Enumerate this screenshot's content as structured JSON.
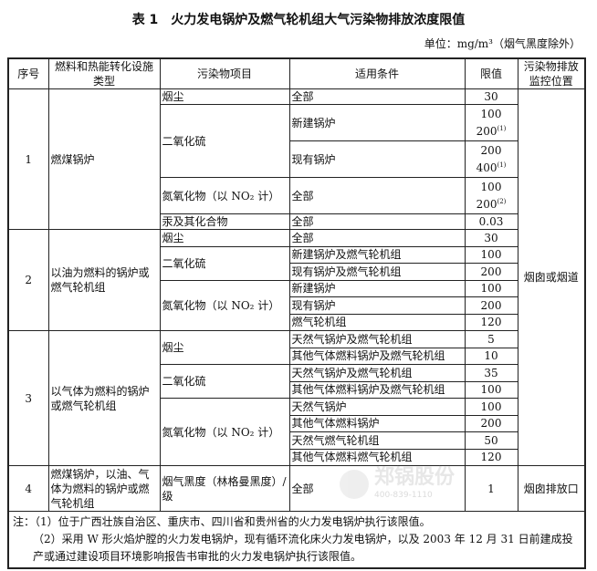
{
  "title": "表 1　火力发电锅炉及燃气轮机组大气污染物排放浓度限值",
  "unit": "单位：mg/m³（烟气黑度除外）",
  "headers": [
    "序号",
    "燃料和热能转化设施类型",
    "污染物项目",
    "适用条件",
    "限值",
    "污染物排放监控位置"
  ],
  "groups": [
    {
      "no": "1",
      "fuel": "燃煤锅炉",
      "pollutants": [
        {
          "name": "烟尘",
          "conds": [
            {
              "c": "全部",
              "l": [
                {
                  "v": "30"
                }
              ]
            }
          ]
        },
        {
          "name": "二氧化硫",
          "conds": [
            {
              "c": "新建锅炉",
              "l": [
                {
                  "v": "100"
                },
                {
                  "v": "200",
                  "n": "(1)"
                }
              ]
            },
            {
              "c": "现有锅炉",
              "l": [
                {
                  "v": "200"
                },
                {
                  "v": "400",
                  "n": "(1)"
                }
              ]
            }
          ]
        },
        {
          "name": "氮氧化物（以 NO₂ 计）",
          "conds": [
            {
              "c": "全部",
              "l": [
                {
                  "v": "100"
                },
                {
                  "v": "200",
                  "n": "(2)"
                }
              ]
            }
          ]
        },
        {
          "name": "汞及其化合物",
          "conds": [
            {
              "c": "全部",
              "l": [
                {
                  "v": "0.03"
                }
              ]
            }
          ]
        }
      ]
    },
    {
      "no": "2",
      "fuel": "以油为燃料的锅炉或燃气轮机组",
      "pollutants": [
        {
          "name": "烟尘",
          "conds": [
            {
              "c": "全部",
              "l": [
                {
                  "v": "30"
                }
              ]
            }
          ]
        },
        {
          "name": "二氧化硫",
          "conds": [
            {
              "c": "新建锅炉及燃气轮机组",
              "l": [
                {
                  "v": "100"
                }
              ]
            },
            {
              "c": "现有锅炉及燃气轮机组",
              "l": [
                {
                  "v": "200"
                }
              ]
            }
          ]
        },
        {
          "name": "氮氧化物（以 NO₂ 计）",
          "conds": [
            {
              "c": "新建锅炉",
              "l": [
                {
                  "v": "100"
                }
              ]
            },
            {
              "c": "现有锅炉",
              "l": [
                {
                  "v": "200"
                }
              ]
            },
            {
              "c": "燃气轮机组",
              "l": [
                {
                  "v": "120"
                }
              ]
            }
          ]
        }
      ]
    },
    {
      "no": "3",
      "fuel": "以气体为燃料的锅炉或燃气轮机组",
      "pollutants": [
        {
          "name": "烟尘",
          "conds": [
            {
              "c": "天然气锅炉及燃气轮机组",
              "l": [
                {
                  "v": "5"
                }
              ]
            },
            {
              "c": "其他气体燃料锅炉及燃气轮机组",
              "l": [
                {
                  "v": "10"
                }
              ]
            }
          ]
        },
        {
          "name": "二氧化硫",
          "conds": [
            {
              "c": "天然气锅炉及燃气轮机组",
              "l": [
                {
                  "v": "35"
                }
              ]
            },
            {
              "c": "其他气体燃料锅炉及燃气轮机组",
              "l": [
                {
                  "v": "100"
                }
              ]
            }
          ]
        },
        {
          "name": "氮氧化物（以 NO₂ 计）",
          "conds": [
            {
              "c": "天然气锅炉",
              "l": [
                {
                  "v": "100"
                }
              ]
            },
            {
              "c": "其他气体燃料锅炉",
              "l": [
                {
                  "v": "200"
                }
              ]
            },
            {
              "c": "天然气燃气轮机组",
              "l": [
                {
                  "v": "50"
                }
              ]
            },
            {
              "c": "其他气体燃料燃气轮机组",
              "l": [
                {
                  "v": "120"
                }
              ]
            }
          ]
        }
      ]
    },
    {
      "no": "4",
      "fuel": "燃煤锅炉，以油、气体为燃料的锅炉或燃气轮机组",
      "pollutants": [
        {
          "name": "烟气黑度（林格曼黑度）/级",
          "conds": [
            {
              "c": "全部",
              "l": [
                {
                  "v": "1"
                }
              ]
            }
          ]
        }
      ]
    }
  ],
  "monitor": [
    "烟囱或烟道",
    "烟囱排放口"
  ],
  "notes": [
    "注：（1）位于广西壮族自治区、重庆市、四川省和贵州省的火力发电锅炉执行该限值。",
    "（2）采用 W 形火焰炉膛的火力发电锅炉，现有循环流化床火力发电锅炉，以及 2003 年 12 月 31 日前建成投产或通过建设项目环境影响报告书审批的火力发电锅炉执行该限值。"
  ],
  "watermark": {
    "name": "郑锅股份",
    "tel": "400-839-1110"
  }
}
